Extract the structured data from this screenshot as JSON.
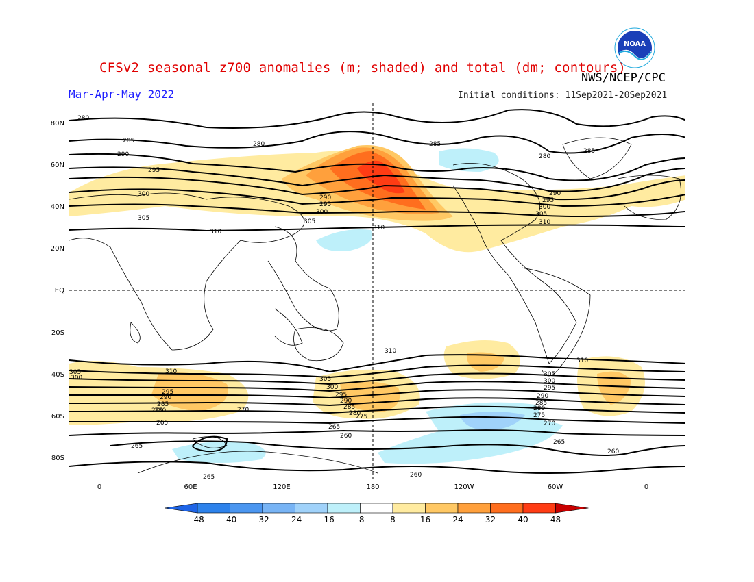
{
  "header": {
    "title": "CFSv2 seasonal z700 anomalies (m; shaded) and total (dm; contours)",
    "agency": "NWS/NCEP/CPC",
    "period": "Mar-Apr-May 2022",
    "initial_conditions": "Initial conditions: 11Sep2021-20Sep2021",
    "logo_icon": "noaa-logo-icon"
  },
  "map": {
    "lat_labels": [
      "80N",
      "60N",
      "40N",
      "20N",
      "EQ",
      "20S",
      "40S",
      "60S",
      "80S"
    ],
    "lon_labels": [
      "0",
      "60E",
      "120E",
      "180",
      "120W",
      "60W",
      "0"
    ],
    "contour_labels": [
      "260",
      "265",
      "270",
      "275",
      "280",
      "285",
      "290",
      "295",
      "300",
      "305",
      "310"
    ]
  },
  "colorbar": {
    "labels": [
      "-48",
      "-40",
      "-32",
      "-24",
      "-16",
      "-8",
      "8",
      "16",
      "24",
      "32",
      "40",
      "48"
    ],
    "colors": [
      "#1e64e6",
      "#2d82eb",
      "#4b96f0",
      "#78b4f5",
      "#a0d2fa",
      "#bef0fa",
      "#ffffff",
      "#ffeba0",
      "#ffc864",
      "#ffa03c",
      "#ff6e1e",
      "#ff3c14",
      "#c80000"
    ]
  }
}
